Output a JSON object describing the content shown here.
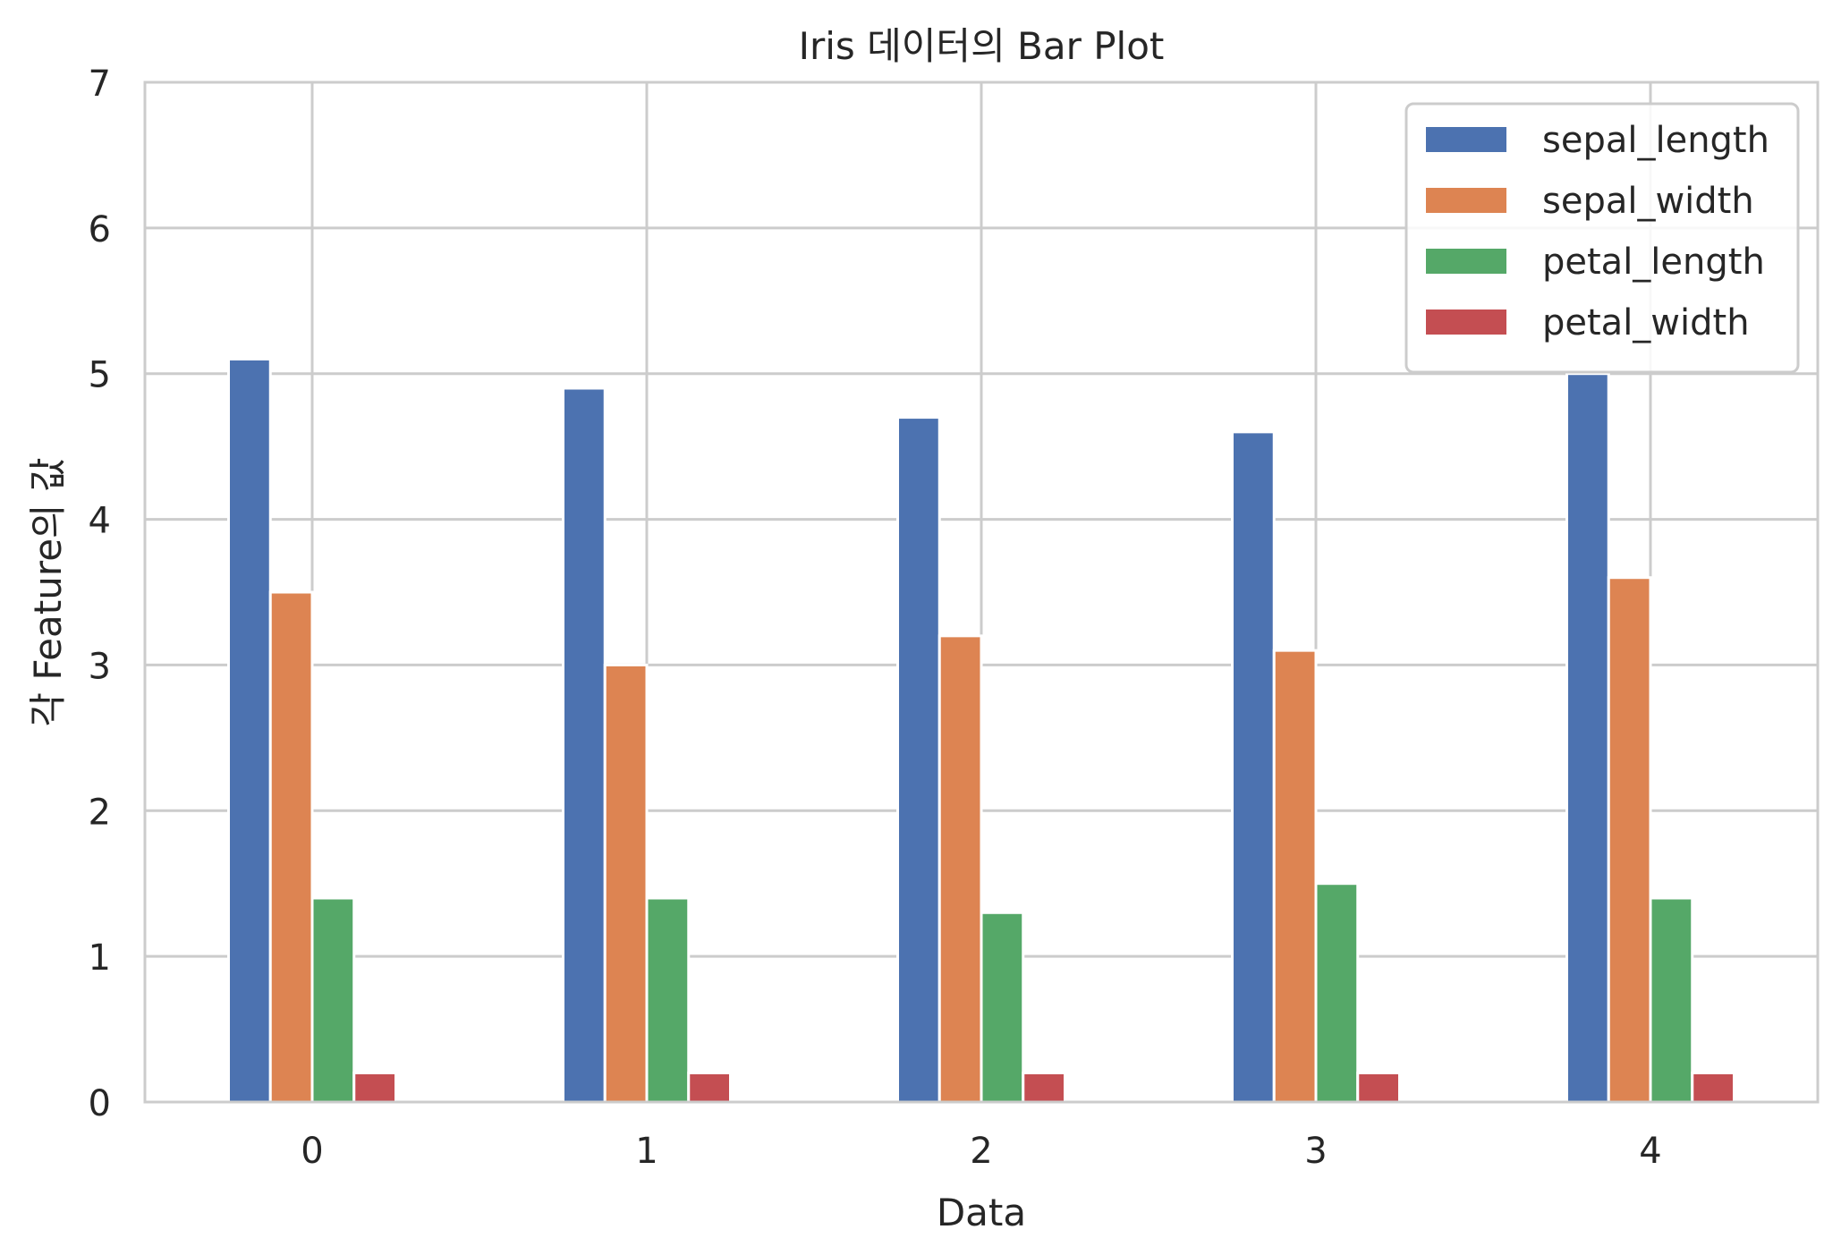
{
  "chart_data": {
    "type": "bar",
    "title": "Iris 데이터의 Bar Plot",
    "xlabel": "Data",
    "ylabel": "각 Feature의 값",
    "categories": [
      "0",
      "1",
      "2",
      "3",
      "4"
    ],
    "ylim": [
      0,
      7
    ],
    "yticks": [
      "0",
      "1",
      "2",
      "3",
      "4",
      "5",
      "6",
      "7"
    ],
    "grid": true,
    "legend_position": "top-right",
    "series": [
      {
        "name": "sepal_length",
        "color": "#4c72b0",
        "values": [
          5.1,
          4.9,
          4.7,
          4.6,
          5.0
        ]
      },
      {
        "name": "sepal_width",
        "color": "#dd8452",
        "values": [
          3.5,
          3.0,
          3.2,
          3.1,
          3.6
        ]
      },
      {
        "name": "petal_length",
        "color": "#55a868",
        "values": [
          1.4,
          1.4,
          1.3,
          1.5,
          1.4
        ]
      },
      {
        "name": "petal_width",
        "color": "#c44e52",
        "values": [
          0.2,
          0.2,
          0.2,
          0.2,
          0.2
        ]
      }
    ]
  }
}
